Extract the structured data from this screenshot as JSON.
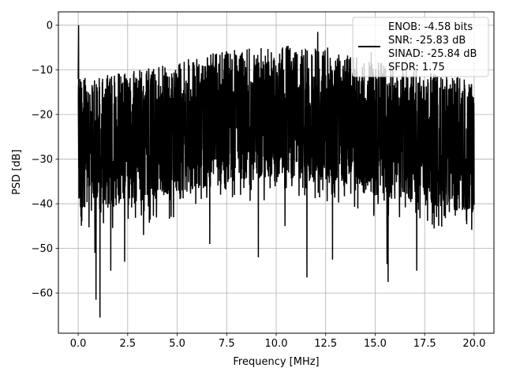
{
  "chart_data": {
    "type": "line",
    "title": "",
    "xlabel": "Frequency [MHz]",
    "ylabel": "PSD [dB]",
    "xlim": [
      -1,
      21
    ],
    "ylim": [
      -69,
      3
    ],
    "xticks": [
      0,
      2.5,
      5,
      7.5,
      10,
      12.5,
      15,
      17.5,
      20
    ],
    "xtick_labels": [
      "0.0",
      "2.5",
      "5.0",
      "7.5",
      "10.0",
      "12.5",
      "15.0",
      "17.5",
      "20.0"
    ],
    "yticks": [
      0,
      -10,
      -20,
      -30,
      -40,
      -50,
      -60
    ],
    "ytick_labels": [
      "0",
      "−10",
      "−20",
      "−30",
      "−40",
      "−50",
      "−60"
    ],
    "grid": true,
    "legend_position": "upper-right",
    "series": [
      {
        "color": "#000000",
        "x_range": [
          0,
          20
        ],
        "dc_peak": {
          "x": 0.02,
          "y": 0
        },
        "notable_dips": [
          {
            "x": 0.85,
            "y": -51
          },
          {
            "x": 0.9,
            "y": -61.5
          },
          {
            "x": 1.1,
            "y": -65.5
          },
          {
            "x": 1.65,
            "y": -55
          },
          {
            "x": 2.35,
            "y": -53
          },
          {
            "x": 3.3,
            "y": -47
          },
          {
            "x": 6.65,
            "y": -49
          },
          {
            "x": 9.1,
            "y": -52
          },
          {
            "x": 10.45,
            "y": -45
          },
          {
            "x": 11.55,
            "y": -56.5
          },
          {
            "x": 12.85,
            "y": -52.5
          },
          {
            "x": 15.6,
            "y": -53.5
          },
          {
            "x": 15.65,
            "y": -57.5
          },
          {
            "x": 17.1,
            "y": -55
          }
        ],
        "notable_peaks": [
          {
            "x": 11.0,
            "y": -6
          },
          {
            "x": 12.1,
            "y": -1.5
          },
          {
            "x": 12.6,
            "y": -5
          },
          {
            "x": 14.8,
            "y": -6
          }
        ]
      }
    ],
    "legend": {
      "lines": [
        "ENOB: -4.58 bits",
        "SNR: -25.83 dB",
        "SINAD: -25.84 dB",
        "SFDR: 1.75"
      ],
      "line_color": "#000000"
    }
  }
}
